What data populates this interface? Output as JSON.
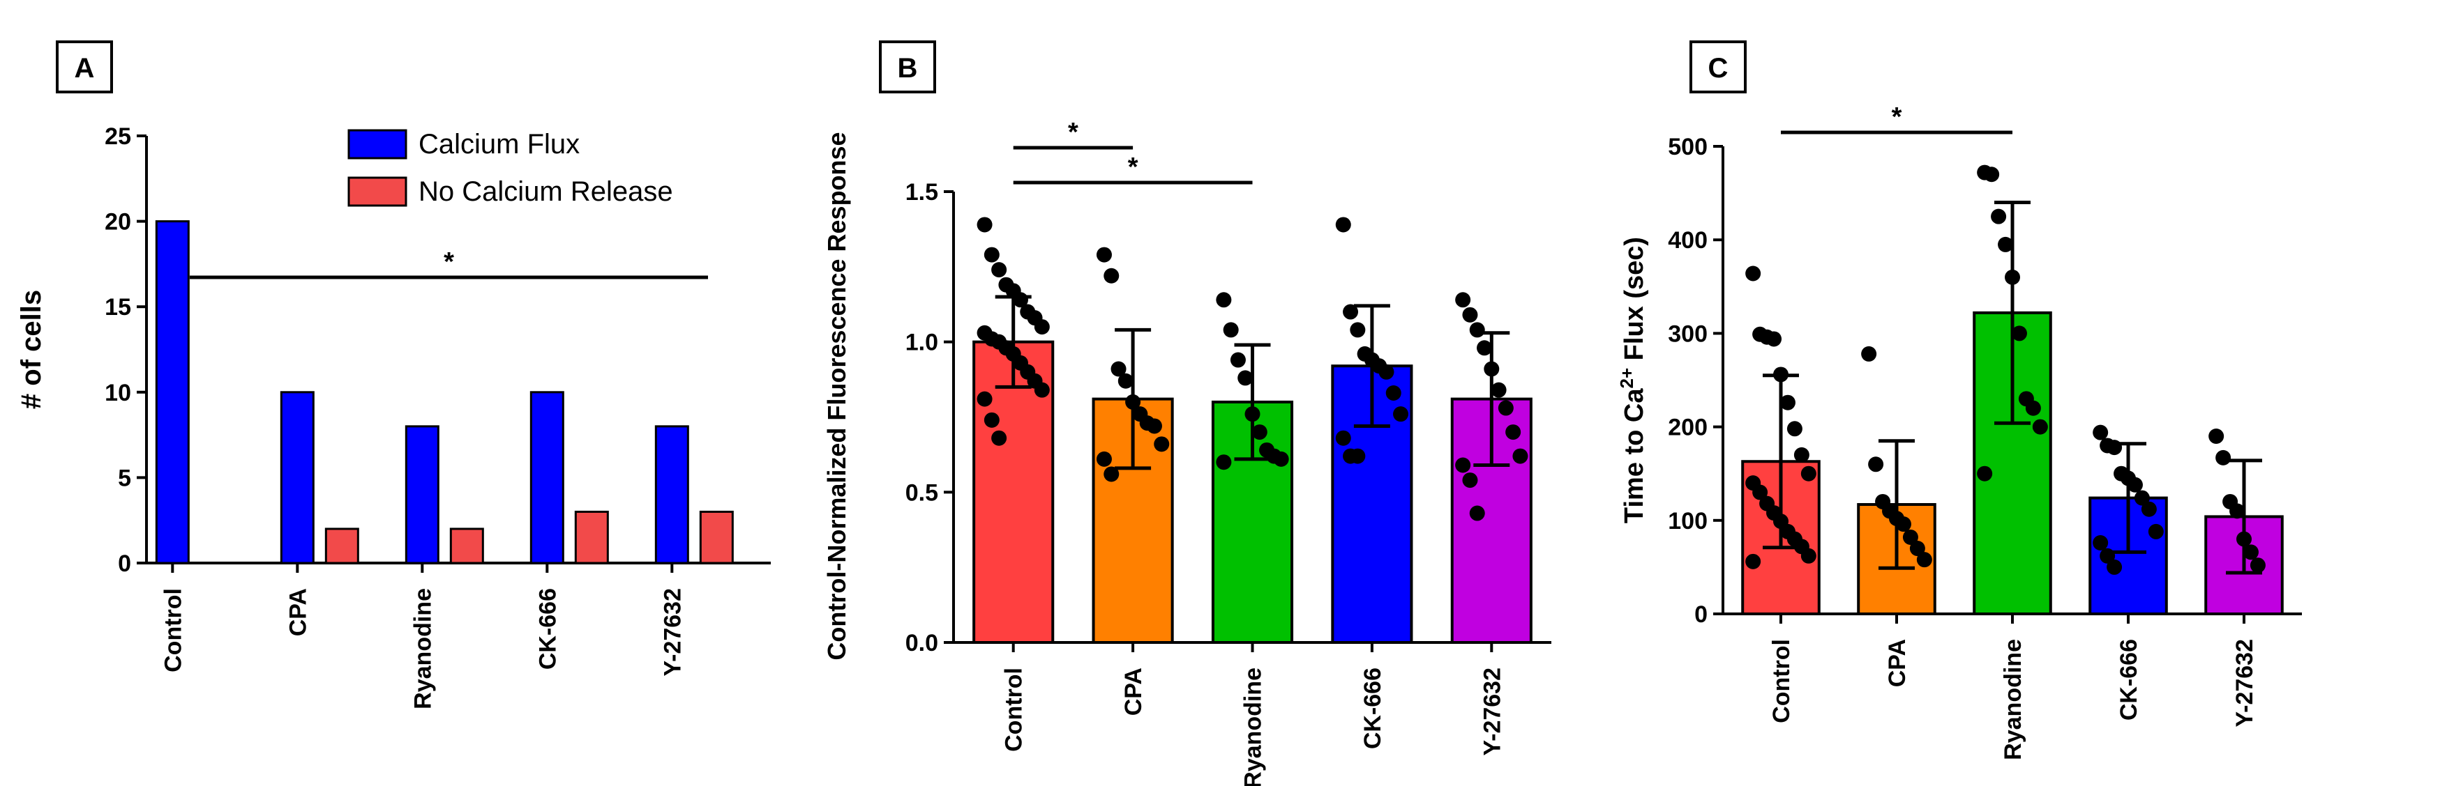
{
  "chart_data": [
    {
      "panel": "A",
      "type": "bar",
      "categories": [
        "Control",
        "CPA",
        "Ryanodine",
        "CK-666",
        "Y-27632"
      ],
      "series": [
        {
          "name": "Calcium Flux",
          "color": "#0000ff",
          "values": [
            20,
            10,
            8,
            10,
            8
          ]
        },
        {
          "name": "No Calcium Release",
          "color": "#f24a4a",
          "values": [
            0,
            2,
            2,
            3,
            3
          ]
        }
      ],
      "ylabel": "# of cells",
      "ylim": [
        0,
        25
      ],
      "yticks": [
        0,
        5,
        10,
        15,
        20,
        25
      ],
      "significance": {
        "label": "*",
        "from": "Control",
        "to": "Y-27632"
      }
    },
    {
      "panel": "B",
      "type": "bar",
      "categories": [
        "Control",
        "CPA",
        "Ryanodine",
        "CK-666",
        "Y-27632"
      ],
      "colors": [
        "#ff4040",
        "#ff8000",
        "#00c000",
        "#0000ff",
        "#c000e0"
      ],
      "values": [
        1.0,
        0.81,
        0.8,
        0.92,
        0.81
      ],
      "error": [
        0.15,
        0.23,
        0.19,
        0.2,
        0.22
      ],
      "points": [
        [
          1.39,
          1.29,
          1.24,
          1.19,
          1.17,
          1.14,
          1.1,
          1.08,
          1.05,
          1.03,
          1.01,
          1.0,
          0.98,
          0.96,
          0.93,
          0.9,
          0.87,
          0.84,
          0.81,
          0.74,
          0.68
        ],
        [
          1.29,
          1.22,
          0.91,
          0.87,
          0.8,
          0.76,
          0.73,
          0.72,
          0.66,
          0.61,
          0.56
        ],
        [
          1.14,
          1.04,
          0.94,
          0.88,
          0.76,
          0.7,
          0.64,
          0.62,
          0.61,
          0.6
        ],
        [
          1.39,
          1.1,
          1.04,
          0.96,
          0.94,
          0.92,
          0.9,
          0.83,
          0.76,
          0.68,
          0.62,
          0.62
        ],
        [
          1.14,
          1.09,
          1.04,
          0.98,
          0.91,
          0.84,
          0.78,
          0.7,
          0.62,
          0.59,
          0.54,
          0.43
        ]
      ],
      "ylabel": "Control-Normalized Fluorescence Response",
      "ylim": [
        0,
        1.5
      ],
      "yticks": [
        "0.0",
        "0.5",
        "1.0",
        "1.5"
      ],
      "significance": [
        {
          "label": "*",
          "from": "Control",
          "to": "CPA"
        },
        {
          "label": "*",
          "from": "Control",
          "to": "Ryanodine"
        }
      ]
    },
    {
      "panel": "C",
      "type": "bar",
      "categories": [
        "Control",
        "CPA",
        "Ryanodine",
        "CK-666",
        "Y-27632"
      ],
      "colors": [
        "#ff4040",
        "#ff8000",
        "#00c000",
        "#0000ff",
        "#c000e0"
      ],
      "values": [
        163,
        117,
        322,
        124,
        104
      ],
      "error": [
        92,
        68,
        118,
        58,
        60
      ],
      "points": [
        [
          364,
          299,
          296,
          294,
          256,
          226,
          198,
          170,
          150,
          140,
          130,
          118,
          108,
          99,
          88,
          80,
          72,
          62,
          56
        ],
        [
          278,
          160,
          120,
          110,
          102,
          96,
          82,
          70,
          58
        ],
        [
          472,
          470,
          425,
          395,
          360,
          300,
          230,
          220,
          200,
          150
        ],
        [
          194,
          180,
          178,
          150,
          145,
          138,
          124,
          112,
          88,
          76,
          62,
          50
        ],
        [
          190,
          167,
          120,
          110,
          80,
          66,
          52
        ]
      ],
      "ylabel": "Time to Ca",
      "ylabel_sup": "2+",
      "ylabel_rest": " Flux (sec)",
      "ylim": [
        0,
        500
      ],
      "yticks": [
        0,
        100,
        200,
        300,
        400,
        500
      ],
      "significance": {
        "label": "*",
        "from": "Control",
        "to": "Ryanodine"
      }
    }
  ]
}
